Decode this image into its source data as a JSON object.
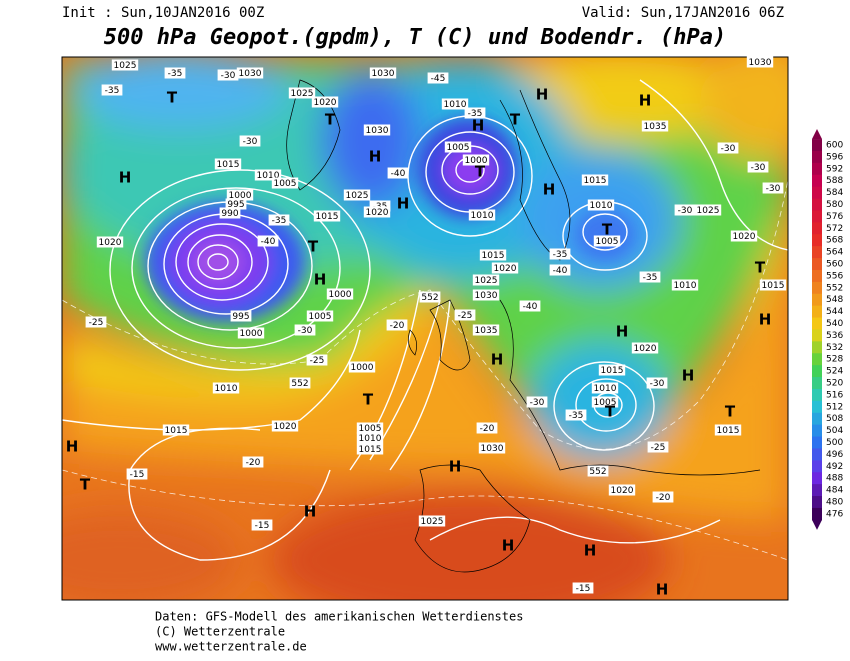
{
  "header": {
    "init": "Init : Sun,10JAN2016 00Z",
    "valid": "Valid: Sun,17JAN2016 06Z",
    "title": "500 hPa Geopot.(gpdm), T (C) und Bodendr. (hPa)"
  },
  "footer": {
    "line1": "Daten: GFS-Modell des amerikanischen Wetterdienstes",
    "line2": "(C) Wetterzentrale",
    "line3": "www.wetterzentrale.de"
  },
  "colorbar": {
    "values": [
      600,
      596,
      592,
      588,
      584,
      580,
      576,
      572,
      568,
      564,
      560,
      556,
      552,
      548,
      544,
      540,
      536,
      532,
      528,
      524,
      520,
      516,
      512,
      508,
      504,
      500,
      496,
      492,
      488,
      484,
      480,
      476
    ]
  },
  "map": {
    "labels": [
      "1025",
      "-35",
      "-30",
      "1030",
      "1030",
      "-45",
      "-35",
      "T",
      "1025",
      "1020",
      "H",
      "1010",
      "-35",
      "H",
      "T",
      "H",
      "1030",
      "T",
      "1030",
      "1035",
      "-30",
      "1005",
      "1000",
      "T",
      "-30",
      "-30",
      "H",
      "-40",
      "1015",
      "1010",
      "1005",
      "H",
      "H",
      "1015",
      "1000",
      "995",
      "990",
      "1025",
      "H",
      "-35",
      "1020",
      "1010",
      "1010",
      "-30",
      "1025",
      "-30",
      "1015",
      "-35",
      "T",
      "1005",
      "1020",
      "-40",
      "T",
      "1020",
      "1015",
      "1020",
      "-35",
      "H",
      "1025",
      "1030",
      "-40",
      "-40",
      "-35",
      "1010",
      "T",
      "1015",
      "1000",
      "552",
      "-25",
      "995",
      "1005",
      "-25",
      "1035",
      "H",
      "H",
      "1000",
      "-30",
      "-20",
      "1020",
      "H",
      "-25",
      "1000",
      "1015",
      "H",
      "1010",
      "552",
      "1010",
      "-30",
      "T",
      "1005",
      "-30",
      "-35",
      "T",
      "T",
      "1015",
      "1015",
      "1005",
      "1010",
      "1015",
      "-20",
      "1020",
      "H",
      "1030",
      "-25",
      "-20",
      "H",
      "552",
      "-15",
      "T",
      "1020",
      "-20",
      "H",
      "1025",
      "-15",
      "H",
      "H",
      "-15",
      "H"
    ]
  }
}
